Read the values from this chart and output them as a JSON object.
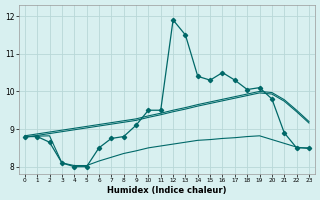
{
  "xlabel": "Humidex (Indice chaleur)",
  "bg_color": "#d8f0f0",
  "grid_color": "#b8d8d8",
  "line_color": "#006868",
  "x_data": [
    0,
    1,
    2,
    3,
    4,
    5,
    6,
    7,
    8,
    9,
    10,
    11,
    12,
    13,
    14,
    15,
    16,
    17,
    18,
    19,
    20,
    21,
    22,
    23
  ],
  "y_main": [
    8.8,
    8.8,
    8.65,
    8.1,
    8.0,
    8.0,
    8.5,
    8.75,
    8.8,
    9.1,
    9.5,
    9.5,
    11.9,
    11.5,
    10.4,
    10.3,
    10.5,
    10.3,
    10.05,
    10.1,
    9.8,
    8.9,
    8.5,
    8.5
  ],
  "y_reg1": [
    8.82,
    8.87,
    8.92,
    8.97,
    9.02,
    9.07,
    9.12,
    9.17,
    9.22,
    9.27,
    9.35,
    9.42,
    9.5,
    9.57,
    9.65,
    9.72,
    9.79,
    9.86,
    9.93,
    10.0,
    9.97,
    9.78,
    9.5,
    9.2
  ],
  "y_reg2": [
    8.78,
    8.83,
    8.88,
    8.93,
    8.98,
    9.03,
    9.08,
    9.13,
    9.18,
    9.23,
    9.31,
    9.38,
    9.46,
    9.53,
    9.61,
    9.68,
    9.75,
    9.82,
    9.89,
    9.96,
    9.93,
    9.74,
    9.46,
    9.16
  ],
  "y_bottom": [
    8.8,
    8.81,
    8.82,
    8.1,
    8.03,
    8.03,
    8.15,
    8.25,
    8.35,
    8.42,
    8.5,
    8.55,
    8.6,
    8.65,
    8.7,
    8.72,
    8.75,
    8.77,
    8.8,
    8.82,
    8.72,
    8.62,
    8.52,
    8.48
  ],
  "ylim": [
    7.8,
    12.3
  ],
  "xlim": [
    -0.5,
    23.5
  ],
  "yticks": [
    8,
    9,
    10,
    11,
    12
  ],
  "xticks": [
    0,
    1,
    2,
    3,
    4,
    5,
    6,
    7,
    8,
    9,
    10,
    11,
    12,
    13,
    14,
    15,
    16,
    17,
    18,
    19,
    20,
    21,
    22,
    23
  ]
}
